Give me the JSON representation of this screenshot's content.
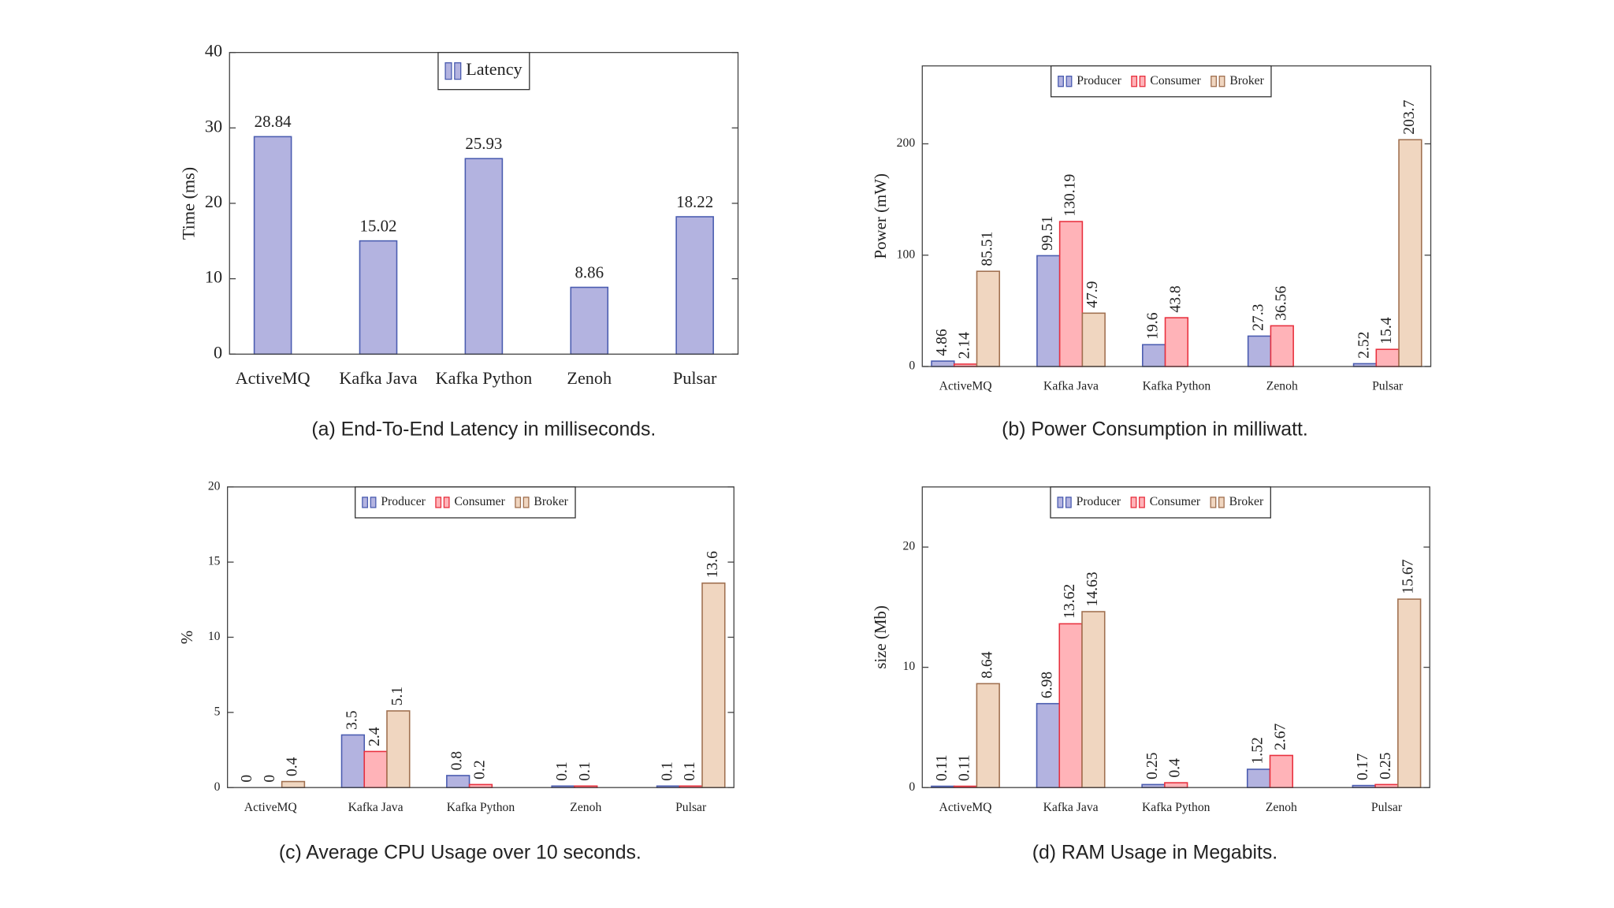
{
  "chart_data": [
    {
      "type": "bar",
      "caption": "(a) End-To-End Latency in milliseconds.",
      "ylabel": "Time (ms)",
      "categories": [
        "ActiveMQ",
        "Kafka Java",
        "Kafka Python",
        "Zenoh",
        "Pulsar"
      ],
      "series": [
        {
          "name": "Latency",
          "color": "#b3b3e0",
          "edge_color": "#4a5cb0",
          "label_color": "#3355aa",
          "values": [
            28.84,
            15.02,
            25.93,
            8.86,
            18.22
          ]
        }
      ],
      "ylim": [
        0,
        40
      ],
      "yticks": [
        0,
        10,
        20,
        30,
        40
      ],
      "legend": "top"
    },
    {
      "type": "bar",
      "caption": "(b) Power Consumption in milliwatt.",
      "ylabel": "Power (mW)",
      "categories": [
        "ActiveMQ",
        "Kafka Java",
        "Kafka Python",
        "Zenoh",
        "Pulsar"
      ],
      "series": [
        {
          "name": "Producer",
          "color": "#b3b3e0",
          "edge_color": "#4a5cb0",
          "label_color": "#3355aa",
          "values": [
            4.86,
            99.51,
            19.6,
            27.3,
            2.52
          ]
        },
        {
          "name": "Consumer",
          "color": "#ffb3b8",
          "edge_color": "#e8303e",
          "label_color": "#e8303e",
          "values": [
            2.14,
            130.19,
            43.8,
            36.56,
            15.4
          ]
        },
        {
          "name": "Broker",
          "color": "#f0d6c0",
          "edge_color": "#a07050",
          "label_color": "#8b5a2b",
          "values": [
            85.51,
            47.9,
            null,
            null,
            203.7
          ]
        }
      ],
      "ylim": [
        0,
        270
      ],
      "yticks": [
        0,
        100,
        200
      ],
      "legend": "top"
    },
    {
      "type": "bar",
      "caption": "(c) Average CPU Usage over 10 seconds.",
      "ylabel": "%",
      "categories": [
        "ActiveMQ",
        "Kafka Java",
        "Kafka Python",
        "Zenoh",
        "Pulsar"
      ],
      "series": [
        {
          "name": "Producer",
          "color": "#b3b3e0",
          "edge_color": "#4a5cb0",
          "label_color": "#3355aa",
          "values": [
            0,
            3.5,
            0.8,
            0.1,
            0.1
          ]
        },
        {
          "name": "Consumer",
          "color": "#ffb3b8",
          "edge_color": "#e8303e",
          "label_color": "#e8303e",
          "values": [
            0,
            2.4,
            0.2,
            0.1,
            0.1
          ]
        },
        {
          "name": "Broker",
          "color": "#f0d6c0",
          "edge_color": "#a07050",
          "label_color": "#8b5a2b",
          "values": [
            0.4,
            5.1,
            null,
            null,
            13.6
          ]
        }
      ],
      "ylim": [
        0,
        20
      ],
      "yticks": [
        0,
        5,
        10,
        15,
        20
      ],
      "legend": "top"
    },
    {
      "type": "bar",
      "caption": "(d) RAM Usage in Megabits.",
      "ylabel": "size (Mb)",
      "categories": [
        "ActiveMQ",
        "Kafka Java",
        "Kafka Python",
        "Zenoh",
        "Pulsar"
      ],
      "series": [
        {
          "name": "Producer",
          "color": "#b3b3e0",
          "edge_color": "#4a5cb0",
          "label_color": "#3355aa",
          "values": [
            0.11,
            6.98,
            0.25,
            1.52,
            0.17
          ]
        },
        {
          "name": "Consumer",
          "color": "#ffb3b8",
          "edge_color": "#e8303e",
          "label_color": "#e8303e",
          "values": [
            0.11,
            13.62,
            0.4,
            2.67,
            0.25
          ]
        },
        {
          "name": "Broker",
          "color": "#f0d6c0",
          "edge_color": "#a07050",
          "label_color": "#8b5a2b",
          "values": [
            8.64,
            14.63,
            null,
            null,
            15.67
          ]
        }
      ],
      "ylim": [
        0,
        25
      ],
      "yticks": [
        0,
        10,
        20
      ],
      "legend": "top"
    }
  ]
}
